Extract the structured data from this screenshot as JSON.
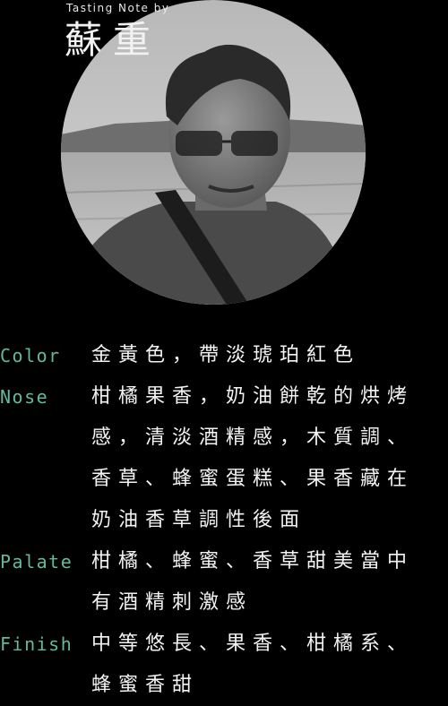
{
  "header": {
    "byline": "Tasting Note by",
    "author": "蘇重"
  },
  "portrait": {
    "description_icon": "portrait-photo"
  },
  "notes": {
    "color": {
      "label": "Color",
      "text": "金黃色，帶淡琥珀紅色"
    },
    "nose": {
      "label": "Nose",
      "text": "柑橘果香，奶油餅乾的烘烤感，清淡酒精感，木質調、香草、蜂蜜蛋糕、果香藏在奶油香草調性後面"
    },
    "palate": {
      "label": "Palate",
      "text": "柑橘、蜂蜜、香草甜美當中有酒精刺激感"
    },
    "finish": {
      "label": "Finish",
      "text": "中等悠長、果香、柑橘系、蜂蜜香甜"
    }
  },
  "colors": {
    "background": "#000000",
    "label_accent": "#63b8a0",
    "text": "#f3f3f3"
  }
}
